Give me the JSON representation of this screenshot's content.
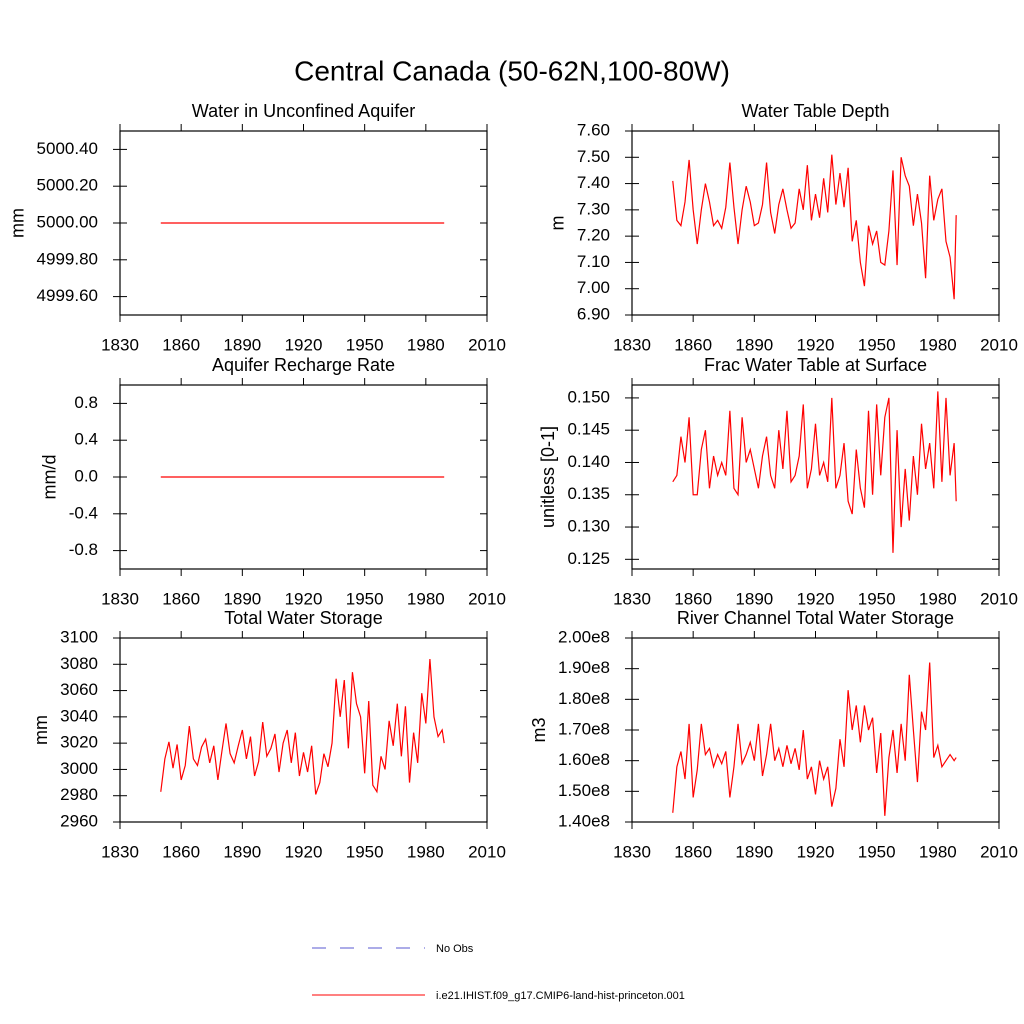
{
  "title": "Central Canada (50-62N,100-80W)",
  "legend": [
    {
      "name": "No Obs",
      "color": "#5a5ad2",
      "dash": true
    },
    {
      "name": "i.e21.IHIST.f09_g17.CMIP6-land-hist-princeton.001",
      "color": "#ff0000",
      "dash": false
    }
  ],
  "chart_data": [
    {
      "type": "line",
      "title": "Water in Unconfined Aquifer",
      "ylabel": "mm",
      "color": "#ff0000",
      "x": [
        1850,
        1989
      ],
      "values": [
        5000,
        5000
      ],
      "xlim": [
        1830,
        2010
      ],
      "xticks": [
        1830,
        1860,
        1890,
        1920,
        1950,
        1980,
        2010
      ],
      "ylim": [
        4999.5,
        5000.5
      ],
      "yticks": [
        {
          "value": 4999.6,
          "label": "4999.60"
        },
        {
          "value": 4999.8,
          "label": "4999.80"
        },
        {
          "value": 5000,
          "label": "5000.00"
        },
        {
          "value": 5000.2,
          "label": "5000.20"
        },
        {
          "value": 5000.4,
          "label": "5000.40"
        }
      ]
    },
    {
      "type": "line",
      "title": "Water Table Depth",
      "ylabel": "m",
      "color": "#ff0000",
      "x": [
        1850,
        1852,
        1854,
        1856,
        1858,
        1860,
        1862,
        1864,
        1866,
        1868,
        1870,
        1872,
        1874,
        1876,
        1878,
        1880,
        1882,
        1884,
        1886,
        1888,
        1890,
        1892,
        1894,
        1896,
        1898,
        1900,
        1902,
        1904,
        1906,
        1908,
        1910,
        1912,
        1914,
        1916,
        1918,
        1920,
        1922,
        1924,
        1926,
        1928,
        1930,
        1932,
        1934,
        1936,
        1938,
        1940,
        1942,
        1944,
        1946,
        1948,
        1950,
        1952,
        1954,
        1956,
        1958,
        1960,
        1962,
        1964,
        1966,
        1968,
        1970,
        1972,
        1974,
        1976,
        1978,
        1980,
        1982,
        1984,
        1986,
        1988,
        1989
      ],
      "values": [
        7.41,
        7.26,
        7.24,
        7.33,
        7.49,
        7.3,
        7.17,
        7.3,
        7.4,
        7.33,
        7.24,
        7.26,
        7.23,
        7.31,
        7.48,
        7.31,
        7.17,
        7.3,
        7.39,
        7.33,
        7.24,
        7.25,
        7.32,
        7.48,
        7.29,
        7.21,
        7.32,
        7.38,
        7.3,
        7.23,
        7.25,
        7.38,
        7.3,
        7.47,
        7.26,
        7.36,
        7.27,
        7.42,
        7.29,
        7.51,
        7.32,
        7.44,
        7.31,
        7.46,
        7.18,
        7.26,
        7.1,
        7.01,
        7.24,
        7.17,
        7.22,
        7.1,
        7.09,
        7.22,
        7.45,
        7.09,
        7.5,
        7.43,
        7.39,
        7.24,
        7.36,
        7.25,
        7.04,
        7.43,
        7.26,
        7.34,
        7.38,
        7.18,
        7.12,
        6.96,
        7.28
      ],
      "xlim": [
        1830,
        2010
      ],
      "xticks": [
        1830,
        1860,
        1890,
        1920,
        1950,
        1980,
        2010
      ],
      "ylim": [
        6.9,
        7.6
      ],
      "yticks": [
        {
          "value": 6.9,
          "label": "6.90"
        },
        {
          "value": 7.0,
          "label": "7.00"
        },
        {
          "value": 7.1,
          "label": "7.10"
        },
        {
          "value": 7.2,
          "label": "7.20"
        },
        {
          "value": 7.3,
          "label": "7.30"
        },
        {
          "value": 7.4,
          "label": "7.40"
        },
        {
          "value": 7.5,
          "label": "7.50"
        },
        {
          "value": 7.6,
          "label": "7.60"
        }
      ]
    },
    {
      "type": "line",
      "title": "Aquifer Recharge Rate",
      "ylabel": "mm/d",
      "color": "#ff0000",
      "x": [
        1850,
        1989
      ],
      "values": [
        0,
        0
      ],
      "xlim": [
        1830,
        2010
      ],
      "xticks": [
        1830,
        1860,
        1890,
        1920,
        1950,
        1980,
        2010
      ],
      "ylim": [
        -1,
        1
      ],
      "yticks": [
        -0.8,
        -0.4,
        {
          "value": 0,
          "label": "0.0"
        },
        0.4,
        0.8
      ]
    },
    {
      "type": "line",
      "title": "Frac Water Table at Surface",
      "ylabel": "unitless [0-1]",
      "color": "#ff0000",
      "x": [
        1850,
        1852,
        1854,
        1856,
        1858,
        1860,
        1862,
        1864,
        1866,
        1868,
        1870,
        1872,
        1874,
        1876,
        1878,
        1880,
        1882,
        1884,
        1886,
        1888,
        1890,
        1892,
        1894,
        1896,
        1898,
        1900,
        1902,
        1904,
        1906,
        1908,
        1910,
        1912,
        1914,
        1916,
        1918,
        1920,
        1922,
        1924,
        1926,
        1928,
        1930,
        1932,
        1934,
        1936,
        1938,
        1940,
        1942,
        1944,
        1946,
        1948,
        1950,
        1952,
        1954,
        1956,
        1958,
        1960,
        1962,
        1964,
        1966,
        1968,
        1970,
        1972,
        1974,
        1976,
        1978,
        1980,
        1982,
        1984,
        1986,
        1988,
        1989
      ],
      "values": [
        0.137,
        0.138,
        0.144,
        0.14,
        0.147,
        0.135,
        0.135,
        0.142,
        0.145,
        0.136,
        0.141,
        0.138,
        0.14,
        0.138,
        0.148,
        0.136,
        0.135,
        0.147,
        0.14,
        0.142,
        0.139,
        0.136,
        0.141,
        0.144,
        0.138,
        0.136,
        0.145,
        0.139,
        0.148,
        0.137,
        0.138,
        0.141,
        0.149,
        0.136,
        0.139,
        0.146,
        0.138,
        0.14,
        0.137,
        0.15,
        0.136,
        0.138,
        0.143,
        0.134,
        0.132,
        0.142,
        0.136,
        0.133,
        0.148,
        0.135,
        0.149,
        0.138,
        0.147,
        0.15,
        0.126,
        0.145,
        0.13,
        0.139,
        0.131,
        0.141,
        0.135,
        0.146,
        0.139,
        0.143,
        0.136,
        0.151,
        0.137,
        0.15,
        0.138,
        0.143,
        0.134
      ],
      "xlim": [
        1830,
        2010
      ],
      "xticks": [
        1830,
        1860,
        1890,
        1920,
        1950,
        1980,
        2010
      ],
      "ylim": [
        0.1235,
        0.152
      ],
      "yticks": [
        0.125,
        {
          "value": 0.13,
          "label": "0.130"
        },
        0.135,
        {
          "value": 0.14,
          "label": "0.140"
        },
        0.145,
        {
          "value": 0.15,
          "label": "0.150"
        }
      ]
    },
    {
      "type": "line",
      "title": "Total Water Storage",
      "ylabel": "mm",
      "color": "#ff0000",
      "x": [
        1850,
        1852,
        1854,
        1856,
        1858,
        1860,
        1862,
        1864,
        1866,
        1868,
        1870,
        1872,
        1874,
        1876,
        1878,
        1880,
        1882,
        1884,
        1886,
        1888,
        1890,
        1892,
        1894,
        1896,
        1898,
        1900,
        1902,
        1904,
        1906,
        1908,
        1910,
        1912,
        1914,
        1916,
        1918,
        1920,
        1922,
        1924,
        1926,
        1928,
        1930,
        1932,
        1934,
        1936,
        1938,
        1940,
        1942,
        1944,
        1946,
        1948,
        1950,
        1952,
        1954,
        1956,
        1958,
        1960,
        1962,
        1964,
        1966,
        1968,
        1970,
        1972,
        1974,
        1976,
        1978,
        1980,
        1982,
        1984,
        1986,
        1988,
        1989
      ],
      "values": [
        2983,
        3008,
        3021,
        3001,
        3019,
        2992,
        3003,
        3033,
        3008,
        3003,
        3017,
        3023,
        3005,
        3018,
        2992,
        3014,
        3035,
        3012,
        3005,
        3018,
        3030,
        3008,
        3025,
        2995,
        3006,
        3036,
        3010,
        3016,
        3027,
        2998,
        3020,
        3030,
        3005,
        3028,
        2995,
        3013,
        2998,
        3018,
        2981,
        2990,
        3012,
        3002,
        3020,
        3069,
        3040,
        3068,
        3016,
        3074,
        3050,
        3040,
        2997,
        3052,
        2988,
        2983,
        3010,
        3000,
        3037,
        3018,
        3050,
        3010,
        3048,
        2990,
        3028,
        3005,
        3058,
        3035,
        3084,
        3040,
        3025,
        3030,
        3020
      ],
      "xlim": [
        1830,
        2010
      ],
      "xticks": [
        1830,
        1860,
        1890,
        1920,
        1950,
        1980,
        2010
      ],
      "ylim": [
        2960,
        3100
      ],
      "yticks": [
        2960,
        2980,
        3000,
        3020,
        3040,
        3060,
        3080,
        3100
      ]
    },
    {
      "type": "line",
      "title": "River Channel Total Water Storage",
      "ylabel": "m3",
      "color": "#ff0000",
      "x": [
        1850,
        1852,
        1854,
        1856,
        1858,
        1860,
        1862,
        1864,
        1866,
        1868,
        1870,
        1872,
        1874,
        1876,
        1878,
        1880,
        1882,
        1884,
        1886,
        1888,
        1890,
        1892,
        1894,
        1896,
        1898,
        1900,
        1902,
        1904,
        1906,
        1908,
        1910,
        1912,
        1914,
        1916,
        1918,
        1920,
        1922,
        1924,
        1926,
        1928,
        1930,
        1932,
        1934,
        1936,
        1938,
        1940,
        1942,
        1944,
        1946,
        1948,
        1950,
        1952,
        1954,
        1956,
        1958,
        1960,
        1962,
        1964,
        1966,
        1968,
        1970,
        1972,
        1974,
        1976,
        1978,
        1980,
        1982,
        1984,
        1986,
        1988,
        1989
      ],
      "values": [
        143000000.0,
        158000000.0,
        163000000.0,
        154000000.0,
        172000000.0,
        148000000.0,
        157000000.0,
        172000000.0,
        162000000.0,
        164000000.0,
        158000000.0,
        162000000.0,
        159000000.0,
        163000000.0,
        148000000.0,
        158000000.0,
        172000000.0,
        159000000.0,
        162000000.0,
        166000000.0,
        160000000.0,
        172000000.0,
        155000000.0,
        162000000.0,
        172000000.0,
        160000000.0,
        164000000.0,
        158000000.0,
        165000000.0,
        159000000.0,
        164000000.0,
        157000000.0,
        170000000.0,
        154000000.0,
        158000000.0,
        149000000.0,
        160000000.0,
        154000000.0,
        158000000.0,
        145000000.0,
        151000000.0,
        167000000.0,
        158000000.0,
        183000000.0,
        170000000.0,
        178000000.0,
        166000000.0,
        178000000.0,
        170000000.0,
        174000000.0,
        156000000.0,
        169000000.0,
        142000000.0,
        161000000.0,
        170000000.0,
        156000000.0,
        172000000.0,
        160000000.0,
        188000000.0,
        170000000.0,
        153000000.0,
        176000000.0,
        170000000.0,
        192000000.0,
        161000000.0,
        165000000.0,
        158000000.0,
        160000000.0,
        162000000.0,
        160000000.0,
        161000000.0
      ],
      "xlim": [
        1830,
        2010
      ],
      "xticks": [
        1830,
        1860,
        1890,
        1920,
        1950,
        1980,
        2010
      ],
      "ylim": [
        140000000.0,
        200000000.0
      ],
      "yticks": [
        {
          "value": 140000000.0,
          "label": "1.40e8"
        },
        {
          "value": 150000000.0,
          "label": "1.50e8"
        },
        {
          "value": 160000000.0,
          "label": "1.60e8"
        },
        {
          "value": 170000000.0,
          "label": "1.70e8"
        },
        {
          "value": 180000000.0,
          "label": "1.80e8"
        },
        {
          "value": 190000000.0,
          "label": "1.90e8"
        },
        {
          "value": 200000000.0,
          "label": "2.00e8"
        }
      ]
    }
  ]
}
